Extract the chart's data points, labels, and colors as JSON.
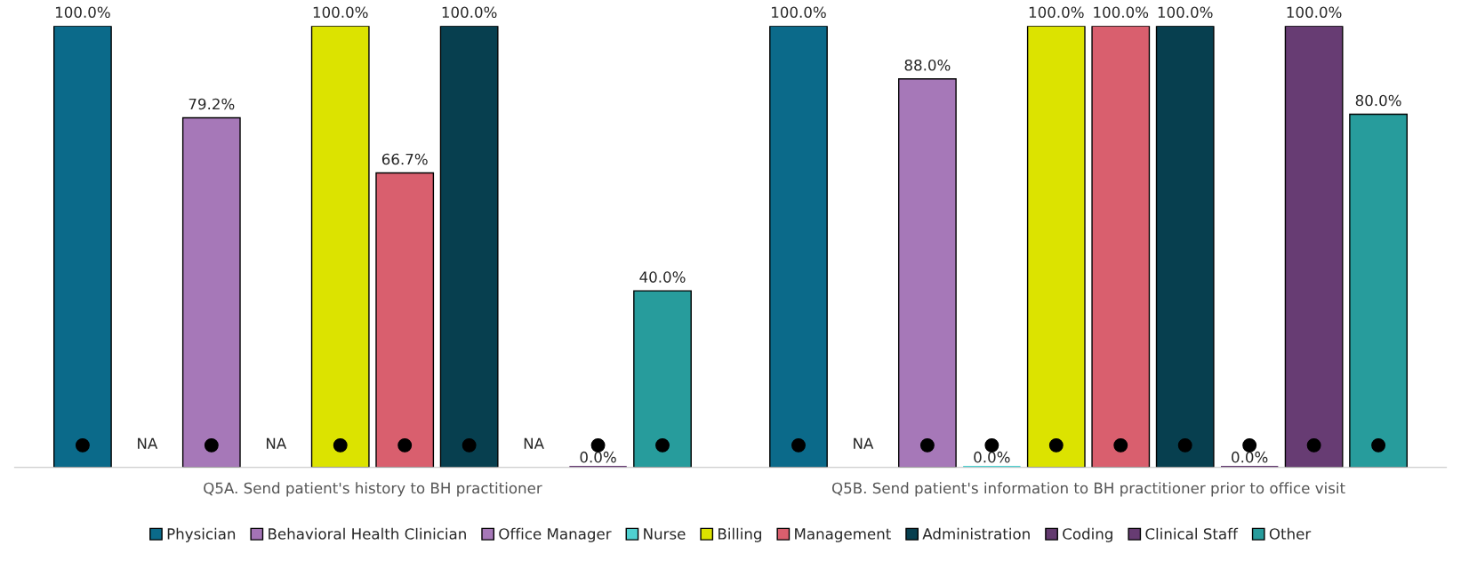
{
  "chart_data": {
    "type": "bar",
    "categories": [
      "Q5A. Send patient's history to BH practitioner",
      "Q5B. Send patient's information to BH practitioner prior to office visit"
    ],
    "ylim": [
      0,
      100
    ],
    "tick_labels": "x",
    "legend": "bottom",
    "grid": false,
    "marker": "circle",
    "series": [
      {
        "name": "Physician",
        "color": "#0b6a8a",
        "values": [
          100,
          100
        ],
        "value_labels": [
          "100.0%",
          "100.0%"
        ]
      },
      {
        "name": "Behavioral Health Clinician",
        "color": "#a373b5",
        "values": [
          null,
          null
        ],
        "value_labels": [
          "NA",
          "NA"
        ]
      },
      {
        "name": "Office Manager",
        "color": "#a678b8",
        "values": [
          79.2,
          88.0
        ],
        "value_labels": [
          "79.2%",
          "88.0%"
        ]
      },
      {
        "name": "Nurse",
        "color": "#4fd1d1",
        "values": [
          null,
          0
        ],
        "value_labels": [
          "NA",
          "0.0%"
        ]
      },
      {
        "name": "Billing",
        "color": "#dce300",
        "values": [
          100,
          100
        ],
        "value_labels": [
          "100.0%",
          "100.0%"
        ]
      },
      {
        "name": "Management",
        "color": "#d95f6e",
        "values": [
          66.7,
          100
        ],
        "value_labels": [
          "66.7%",
          "100.0%"
        ]
      },
      {
        "name": "Administration",
        "color": "#073f4f",
        "values": [
          100,
          100
        ],
        "value_labels": [
          "100.0%",
          "100.0%"
        ]
      },
      {
        "name": "Coding",
        "color": "#633a6f",
        "values": [
          null,
          0
        ],
        "value_labels": [
          "NA",
          "0.0%"
        ]
      },
      {
        "name": "Clinical Staff",
        "color": "#673c73",
        "values": [
          0,
          100
        ],
        "value_labels": [
          "0.0%",
          "100.0%"
        ]
      },
      {
        "name": "Other",
        "color": "#279c9c",
        "values": [
          40.0,
          80.0
        ],
        "value_labels": [
          "40.0%",
          "80.0%"
        ]
      }
    ]
  }
}
